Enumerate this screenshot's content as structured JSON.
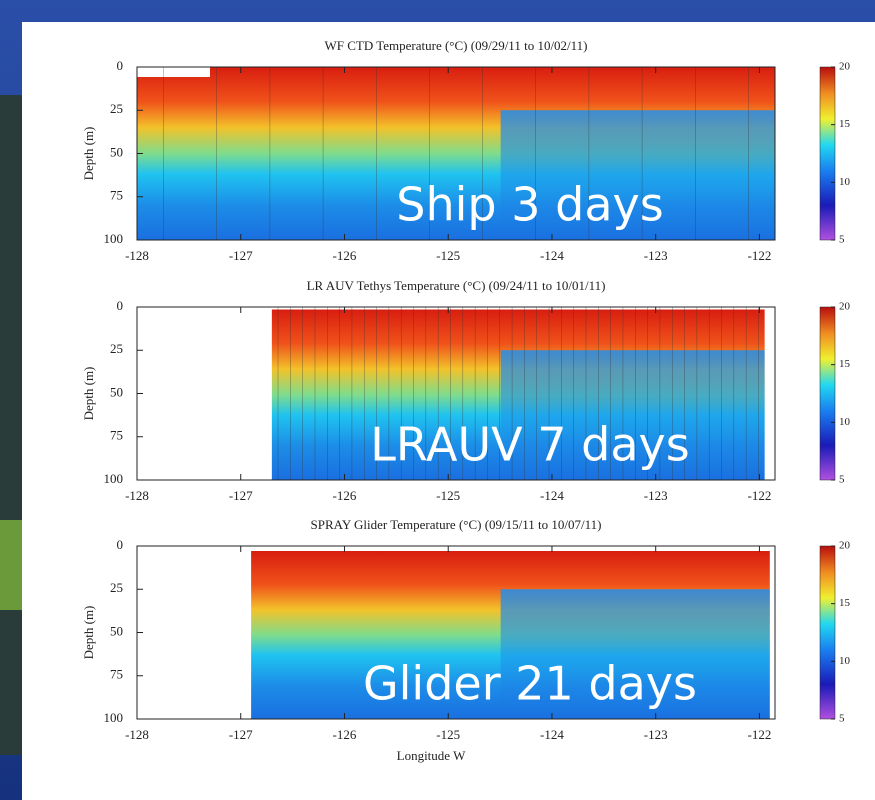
{
  "chart_data": [
    {
      "type": "heatmap",
      "title": "WF CTD Temperature (°C) (09/29/11 to 10/02/11)",
      "ylabel": "Depth (m)",
      "xlim": [
        -128,
        -121.85
      ],
      "xticks": [
        -128,
        -127,
        -126,
        -125,
        -124,
        -123,
        -122
      ],
      "data_xlim": [
        -128,
        -121.85
      ],
      "ylim": [
        0,
        100
      ],
      "yticks": [
        0,
        25,
        50,
        75,
        100
      ],
      "y_inverted": true,
      "colorbar": {
        "lim": [
          5,
          20
        ],
        "ticks": [
          5,
          10,
          15,
          20
        ]
      },
      "annotation": "Ship 3 days"
    },
    {
      "type": "heatmap",
      "title": "LR AUV Tethys Temperature (°C) (09/24/11 to 10/01/11)",
      "ylabel": "Depth (m)",
      "xlim": [
        -128,
        -121.85
      ],
      "xticks": [
        -128,
        -127,
        -126,
        -125,
        -124,
        -123,
        -122
      ],
      "data_xlim": [
        -126.7,
        -121.95
      ],
      "ylim": [
        0,
        100
      ],
      "yticks": [
        0,
        25,
        50,
        75,
        100
      ],
      "y_inverted": true,
      "colorbar": {
        "lim": [
          5,
          20
        ],
        "ticks": [
          5,
          10,
          15,
          20
        ]
      },
      "annotation": "LRAUV 7 days"
    },
    {
      "type": "heatmap",
      "title": "SPRAY Glider Temperature (°C) (09/15/11 to 10/07/11)",
      "ylabel": "Depth (m)",
      "xlabel": "Longitude W",
      "xlim": [
        -128,
        -121.85
      ],
      "xticks": [
        -128,
        -127,
        -126,
        -125,
        -124,
        -123,
        -122
      ],
      "data_xlim": [
        -126.9,
        -121.9
      ],
      "ylim": [
        0,
        100
      ],
      "yticks": [
        0,
        25,
        50,
        75,
        100
      ],
      "y_inverted": true,
      "colorbar": {
        "lim": [
          5,
          20
        ],
        "ticks": [
          5,
          10,
          15,
          20
        ]
      },
      "annotation": "Glider 21 days"
    }
  ]
}
